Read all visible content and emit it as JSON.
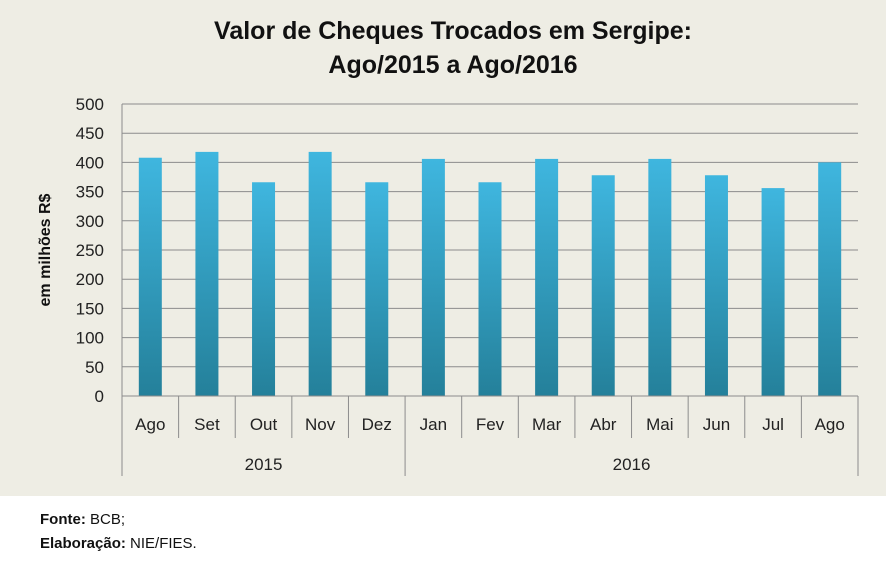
{
  "chart_data": {
    "type": "bar",
    "title": [
      "Valor de Cheques Trocados em Sergipe:",
      "Ago/2015 a Ago/2016"
    ],
    "ylabel": "em milhões R$",
    "xlabel": "",
    "categories": [
      "Ago",
      "Set",
      "Out",
      "Nov",
      "Dez",
      "Jan",
      "Fev",
      "Mar",
      "Abr",
      "Mai",
      "Jun",
      "Jul",
      "Ago"
    ],
    "groups": [
      {
        "label": "2015",
        "count": 5
      },
      {
        "label": "2016",
        "count": 8
      }
    ],
    "values": [
      408,
      418,
      366,
      418,
      366,
      406,
      366,
      406,
      378,
      406,
      378,
      356,
      400
    ],
    "ylim": [
      0,
      500
    ],
    "yticks": [
      0,
      50,
      100,
      150,
      200,
      250,
      300,
      350,
      400,
      450,
      500
    ],
    "grid": true,
    "colors": {
      "bar_top": "#3fb6df",
      "bar_bottom": "#24809a",
      "grid": "#8c8c8c",
      "background": "#eeede4"
    }
  },
  "footer": {
    "source_label": "Fonte:",
    "source_value": "BCB;",
    "credit_label": "Elaboração:",
    "credit_value": "NIE/FIES."
  }
}
